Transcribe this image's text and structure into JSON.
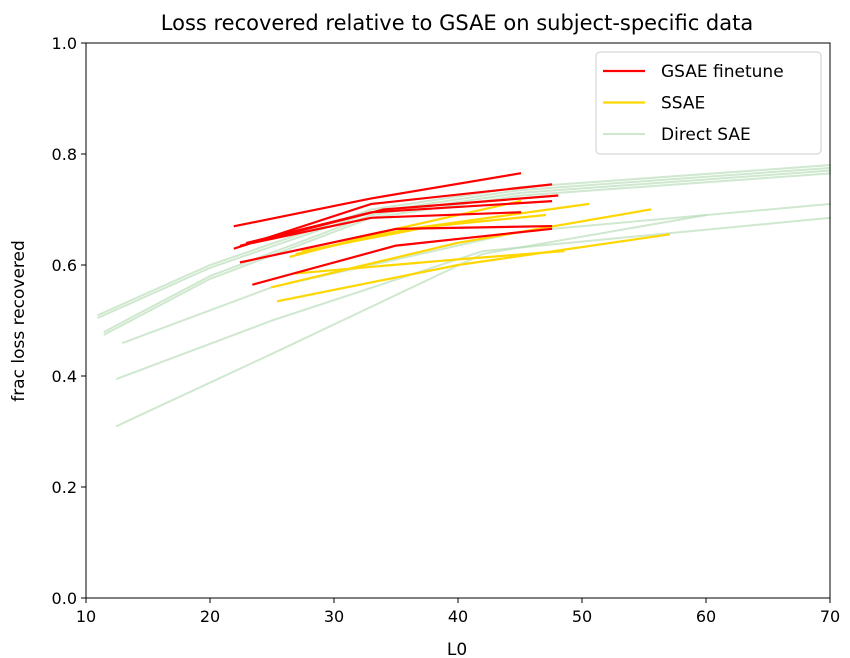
{
  "chart_data": {
    "type": "line",
    "title": "Loss recovered relative to GSAE on subject-specific data",
    "xlabel": "L0",
    "ylabel": "frac loss recovered",
    "xlim": [
      10,
      70
    ],
    "ylim": [
      0.0,
      1.0
    ],
    "xticks": [
      10,
      20,
      30,
      40,
      50,
      60,
      70
    ],
    "yticks": [
      0.0,
      0.2,
      0.4,
      0.6,
      0.8,
      1.0
    ],
    "ytick_labels": [
      "0.0",
      "0.2",
      "0.4",
      "0.6",
      "0.8",
      "1.0"
    ],
    "grid": false,
    "legend_position": "top-right",
    "legend": [
      "GSAE finetune",
      "SSAE",
      "Direct SAE"
    ],
    "colors": {
      "GSAE finetune": "#ff0000",
      "SSAE": "#ffd700",
      "Direct SAE": "#b5dbb5"
    },
    "series": [
      {
        "group": "Direct SAE",
        "x": [
          11,
          20,
          33,
          45,
          70
        ],
        "y": [
          0.51,
          0.6,
          0.7,
          0.74,
          0.78
        ]
      },
      {
        "group": "Direct SAE",
        "x": [
          11,
          20,
          33,
          45,
          70
        ],
        "y": [
          0.505,
          0.595,
          0.695,
          0.735,
          0.775
        ]
      },
      {
        "group": "Direct SAE",
        "x": [
          11.5,
          20,
          33,
          45,
          70
        ],
        "y": [
          0.48,
          0.58,
          0.69,
          0.73,
          0.77
        ]
      },
      {
        "group": "Direct SAE",
        "x": [
          11.5,
          20,
          33,
          45,
          70
        ],
        "y": [
          0.475,
          0.575,
          0.685,
          0.725,
          0.765
        ]
      },
      {
        "group": "Direct SAE",
        "x": [
          13,
          25,
          45,
          70
        ],
        "y": [
          0.46,
          0.56,
          0.66,
          0.71
        ]
      },
      {
        "group": "Direct SAE",
        "x": [
          12.5,
          25,
          42,
          70
        ],
        "y": [
          0.395,
          0.5,
          0.625,
          0.685
        ]
      },
      {
        "group": "Direct SAE",
        "x": [
          12.5,
          25,
          42,
          60
        ],
        "y": [
          0.31,
          0.44,
          0.62,
          0.69
        ]
      },
      {
        "group": "SSAE",
        "x": [
          26.5,
          35,
          45
        ],
        "y": [
          0.615,
          0.665,
          0.715
        ]
      },
      {
        "group": "SSAE",
        "x": [
          27,
          36,
          50.5
        ],
        "y": [
          0.62,
          0.665,
          0.71
        ]
      },
      {
        "group": "SSAE",
        "x": [
          27.5,
          38,
          47
        ],
        "y": [
          0.625,
          0.67,
          0.69
        ]
      },
      {
        "group": "SSAE",
        "x": [
          25,
          40,
          55.5
        ],
        "y": [
          0.56,
          0.64,
          0.7
        ]
      },
      {
        "group": "SSAE",
        "x": [
          25.5,
          40,
          57
        ],
        "y": [
          0.535,
          0.6,
          0.655
        ]
      },
      {
        "group": "SSAE",
        "x": [
          27,
          40,
          48.5
        ],
        "y": [
          0.585,
          0.61,
          0.625
        ]
      },
      {
        "group": "GSAE finetune",
        "x": [
          22,
          33,
          45
        ],
        "y": [
          0.67,
          0.72,
          0.765
        ]
      },
      {
        "group": "GSAE finetune",
        "x": [
          22,
          33,
          47.5
        ],
        "y": [
          0.63,
          0.71,
          0.745
        ]
      },
      {
        "group": "GSAE finetune",
        "x": [
          22.5,
          34,
          48
        ],
        "y": [
          0.635,
          0.7,
          0.725
        ]
      },
      {
        "group": "GSAE finetune",
        "x": [
          23,
          33,
          47.5
        ],
        "y": [
          0.64,
          0.695,
          0.715
        ]
      },
      {
        "group": "GSAE finetune",
        "x": [
          23.5,
          33,
          45
        ],
        "y": [
          0.64,
          0.685,
          0.695
        ]
      },
      {
        "group": "GSAE finetune",
        "x": [
          22.5,
          35,
          47.5
        ],
        "y": [
          0.605,
          0.665,
          0.67
        ]
      },
      {
        "group": "GSAE finetune",
        "x": [
          23.5,
          35,
          47.5
        ],
        "y": [
          0.565,
          0.635,
          0.665
        ]
      }
    ]
  }
}
